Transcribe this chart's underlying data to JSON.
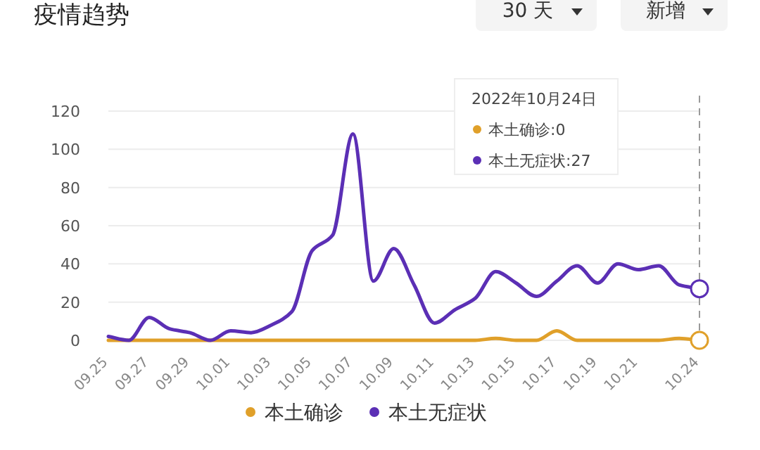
{
  "chart_data": {
    "type": "line",
    "title": "疫情趋势",
    "categories": [
      "09.25",
      null,
      "09.27",
      null,
      "09.29",
      null,
      "10.01",
      null,
      "10.03",
      null,
      "10.05",
      null,
      "10.07",
      null,
      "10.09",
      null,
      "10.11",
      null,
      "10.13",
      null,
      "10.15",
      null,
      "10.17",
      null,
      "10.19",
      null,
      "10.21",
      null,
      null,
      "10.24"
    ],
    "series": [
      {
        "name": "本土确诊",
        "color": "#e0a02a",
        "values": [
          0,
          0,
          0,
          0,
          0,
          0,
          0,
          0,
          0,
          0,
          0,
          0,
          0,
          0,
          0,
          0,
          0,
          0,
          0,
          1,
          0,
          0,
          5,
          0,
          0,
          0,
          0,
          0,
          1,
          0
        ]
      },
      {
        "name": "本土无症状",
        "color": "#5b2fb5",
        "values": [
          2,
          0,
          12,
          6,
          4,
          0,
          5,
          4,
          8,
          15,
          47,
          55,
          108,
          31,
          48,
          29,
          9,
          16,
          22,
          36,
          30,
          23,
          31,
          39,
          30,
          40,
          37,
          39,
          29,
          27
        ]
      }
    ],
    "ylim": [
      0,
      120
    ],
    "yticks": [
      0,
      20,
      40,
      60,
      80,
      100,
      120
    ],
    "grid": "y",
    "legend": "bottom",
    "marker": "none",
    "line_style": "solid",
    "ref_lines": [
      {
        "axis": "x",
        "value": "10.24",
        "color": "#9a9a9a",
        "line_style": "dashed"
      }
    ],
    "annotations": [
      "30 天",
      "新增",
      "2022年10月24日",
      "本土确诊:0",
      "本土无症状:27"
    ]
  }
}
